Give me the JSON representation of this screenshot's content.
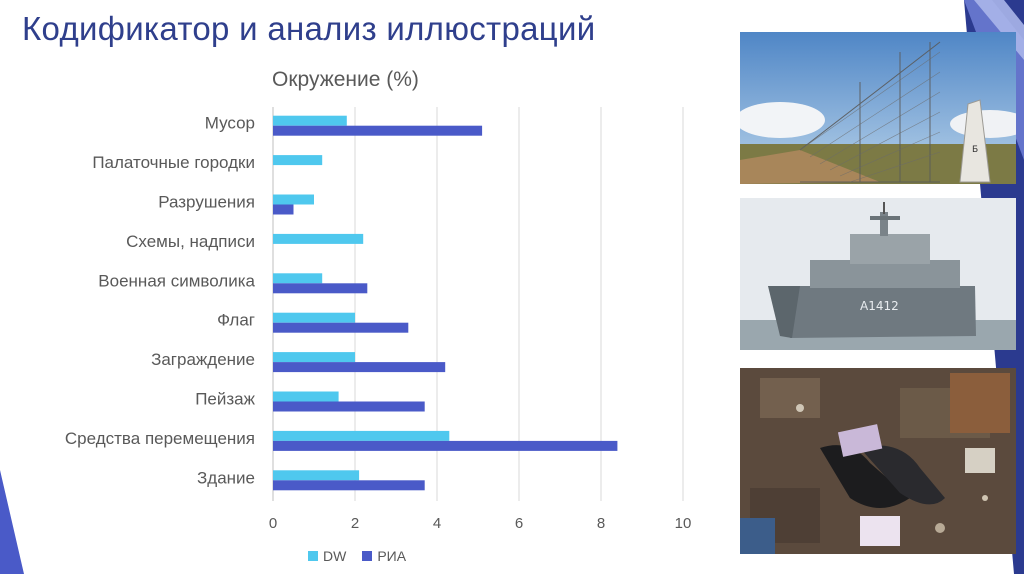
{
  "slide": {
    "title": "Кодификатор и анализ иллюстраций"
  },
  "colors": {
    "dw": "#4fc8ee",
    "ria": "#4a5ac8",
    "title": "#2f3f8c",
    "accent_dark": "#2b3a8f",
    "accent_mid": "#6f7fd6",
    "accent_light": "#aab6ea"
  },
  "photos": [
    {
      "name": "border-fence-photo",
      "icon": "fence-landscape"
    },
    {
      "name": "navy-ship-photo",
      "icon": "ship"
    },
    {
      "name": "debris-shoes-photo",
      "icon": "debris"
    }
  ],
  "chart_data": {
    "type": "bar",
    "orientation": "horizontal",
    "title": "Окружение (%)",
    "categories": [
      "Мусор",
      "Палаточные городки",
      "Разрушения",
      "Схемы, надписи",
      "Военная символика",
      "Флаг",
      "Заграждение",
      "Пейзаж",
      "Средства перемещения",
      "Здание"
    ],
    "series": [
      {
        "name": "DW",
        "values": [
          1.8,
          1.2,
          1.0,
          2.2,
          1.2,
          2.0,
          2.0,
          1.6,
          4.3,
          2.1
        ]
      },
      {
        "name": "РИА",
        "values": [
          5.1,
          0,
          0.5,
          0,
          2.3,
          3.3,
          4.2,
          3.7,
          8.4,
          3.7
        ]
      }
    ],
    "xlim": [
      0,
      10
    ],
    "xticks": [
      "0",
      "2",
      "4",
      "6",
      "8",
      "10"
    ],
    "grid": true,
    "legend": "bottom"
  }
}
